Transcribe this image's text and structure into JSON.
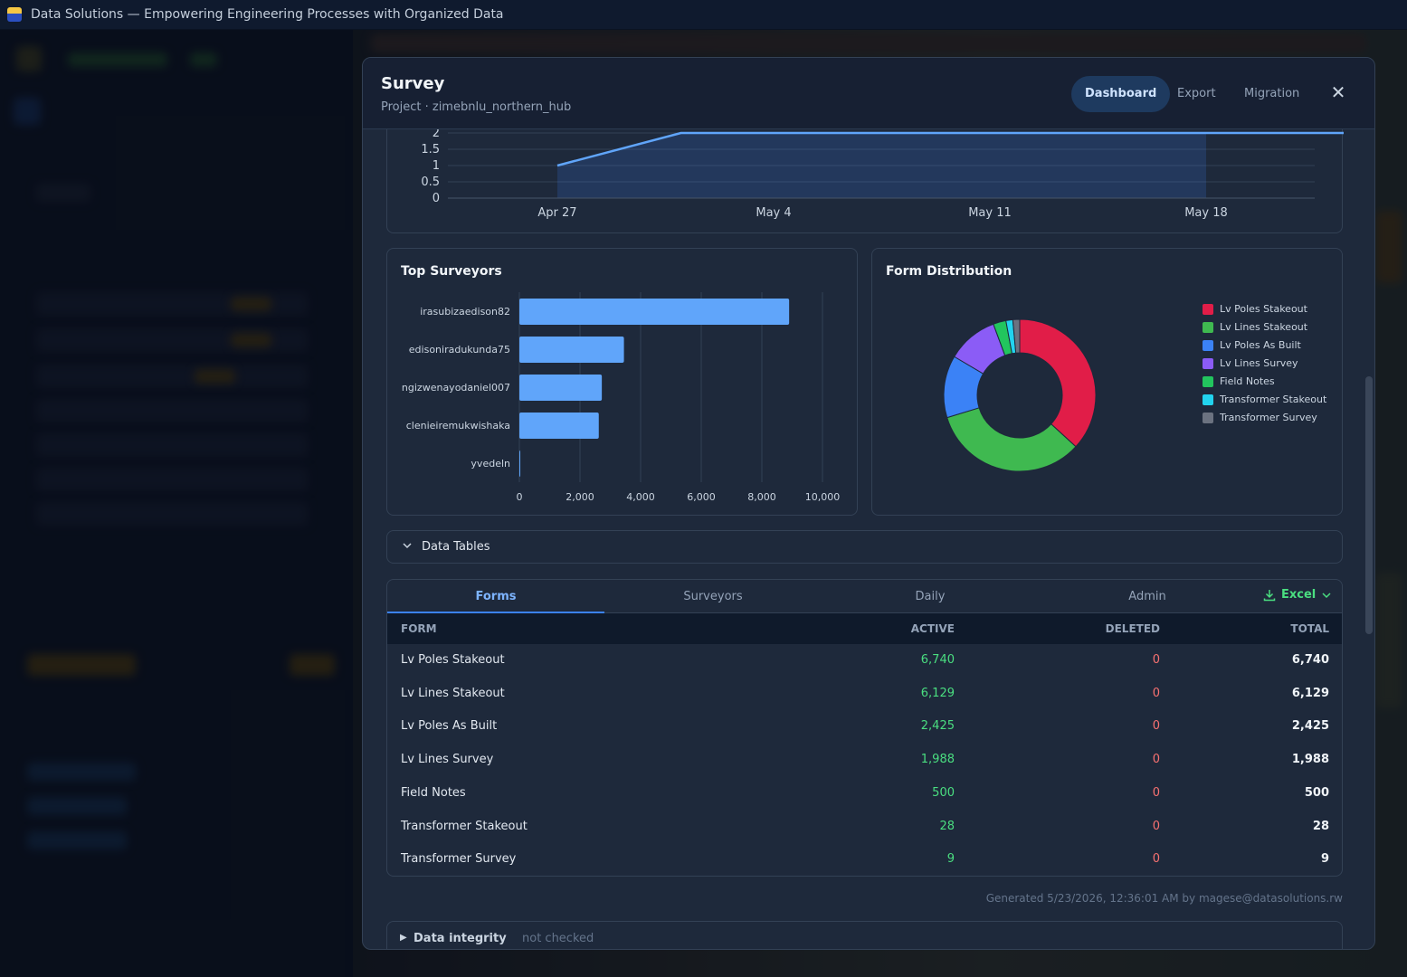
{
  "window": {
    "title": "Data Solutions — Empowering Engineering Processes with Organized Data"
  },
  "modal": {
    "title": "Survey",
    "subtitle": "Project · zimebnlu_northern_hub",
    "tabs": [
      {
        "label": "Dashboard",
        "active": true
      },
      {
        "label": "Export",
        "active": false
      },
      {
        "label": "Migration",
        "active": false
      }
    ]
  },
  "chart_data": [
    {
      "type": "area",
      "x_tick_labels": [
        "Apr 27",
        "May 4",
        "May 11",
        "May 18"
      ],
      "y_tick_labels": [
        "0",
        "0.5",
        "1",
        "1.5",
        "2"
      ],
      "ylim": [
        0,
        2
      ],
      "series": [
        {
          "x": [
            "Apr 27",
            "May 1",
            "May 23"
          ],
          "values": [
            1,
            2,
            2
          ]
        }
      ],
      "grid": true
    },
    {
      "type": "bar",
      "orientation": "horizontal",
      "title": "Top Surveyors",
      "categories": [
        "irasubizaedison82",
        "edisoniradukunda75",
        "ngizwenayodaniel007",
        "clenieiremukwishaka",
        "yvedeln"
      ],
      "values": [
        8900,
        3450,
        2720,
        2620,
        20
      ],
      "xlim": [
        0,
        10000
      ],
      "x_tick_labels": [
        "0",
        "2,000",
        "4,000",
        "6,000",
        "8,000",
        "10,000"
      ],
      "grid": true,
      "color": "#60a5fa"
    },
    {
      "type": "pie",
      "donut": true,
      "title": "Form Distribution",
      "legend_position": "right",
      "categories": [
        "Lv Poles Stakeout",
        "Lv Lines Stakeout",
        "Lv Poles As Built",
        "Lv Lines Survey",
        "Field Notes",
        "Transformer Stakeout",
        "Transformer Survey"
      ],
      "values": [
        6740,
        6129,
        2425,
        1988,
        500,
        28,
        9
      ],
      "colors": [
        "#e11d48",
        "#3fb950",
        "#3b82f6",
        "#8b5cf6",
        "#22c55e",
        "#22d3ee",
        "#6b7280"
      ]
    }
  ],
  "data_tables": {
    "section_label": "Data Tables",
    "tabs": [
      "Forms",
      "Surveyors",
      "Daily",
      "Admin"
    ],
    "active_tab": "Forms",
    "export_label": "Excel",
    "columns": [
      "FORM",
      "ACTIVE",
      "DELETED",
      "TOTAL"
    ],
    "rows": [
      {
        "form": "Lv Poles Stakeout",
        "active": "6,740",
        "deleted": "0",
        "total": "6,740"
      },
      {
        "form": "Lv Lines Stakeout",
        "active": "6,129",
        "deleted": "0",
        "total": "6,129"
      },
      {
        "form": "Lv Poles As Built",
        "active": "2,425",
        "deleted": "0",
        "total": "2,425"
      },
      {
        "form": "Lv Lines Survey",
        "active": "1,988",
        "deleted": "0",
        "total": "1,988"
      },
      {
        "form": "Field Notes",
        "active": "500",
        "deleted": "0",
        "total": "500"
      },
      {
        "form": "Transformer Stakeout",
        "active": "28",
        "deleted": "0",
        "total": "28"
      },
      {
        "form": "Transformer Survey",
        "active": "9",
        "deleted": "0",
        "total": "9"
      }
    ]
  },
  "footer": {
    "generated": "Generated 5/23/2026, 12:36:01 AM by magese@datasolutions.rw",
    "integrity_label": "Data integrity",
    "integrity_status": "not checked"
  }
}
